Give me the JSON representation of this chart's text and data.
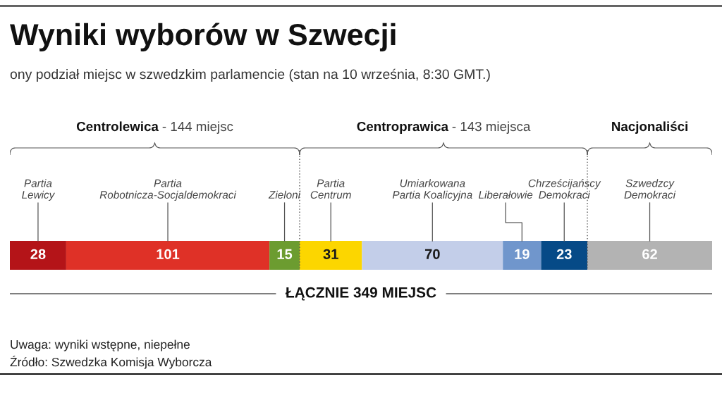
{
  "chart_data": {
    "type": "bar",
    "orientation": "horizontal",
    "stacked": true,
    "title": "Wyniki wyborów w Szwecji",
    "subtitle": "ony podział miejsc w szwedzkim parlamencie (stan na 10 września, 8:30 GMT.)",
    "categories": [
      null
    ],
    "series": [
      {
        "name": "Partia Lewicy",
        "color": "#b41418",
        "values": [
          28
        ]
      },
      {
        "name": "Partia Robotnicza-Socjaldemokraci",
        "color": "#df3127",
        "values": [
          101
        ]
      },
      {
        "name": "Zieloni",
        "color": "#6c9c30",
        "values": [
          15
        ]
      },
      {
        "name": "Partia Centrum",
        "color": "#fcd600",
        "values": [
          31
        ]
      },
      {
        "name": "Umiarkowana Partia Koalicyjna",
        "color": "#c3cee9",
        "values": [
          70
        ]
      },
      {
        "name": "Liberałowie",
        "color": "#7096cc",
        "values": [
          19
        ]
      },
      {
        "name": "Chrześcijańscy Demokraci",
        "color": "#064a87",
        "values": [
          23
        ]
      },
      {
        "name": "Szwedzcy Demokraci",
        "color": "#b3b3b3",
        "values": [
          62
        ]
      }
    ],
    "data_labels": true,
    "totals": [
      "ŁĄCZNIE 349 MIEJSC"
    ],
    "ref_lines": [
      {
        "axis": "x",
        "value": 144,
        "line_style": "dotted",
        "color": "#555555"
      },
      {
        "axis": "x",
        "value": 287,
        "line_style": "dotted",
        "color": "#555555"
      }
    ],
    "tick_labels": false,
    "annotations": [
      "Centrolewica - 144 miejsc",
      "Centroprawica - 143 miejsca",
      "Nacjonaliści",
      "Uwaga: wyniki wstępne, niepełne",
      "Źródło: Szwedzka Komisja Wyborcza"
    ]
  }
}
